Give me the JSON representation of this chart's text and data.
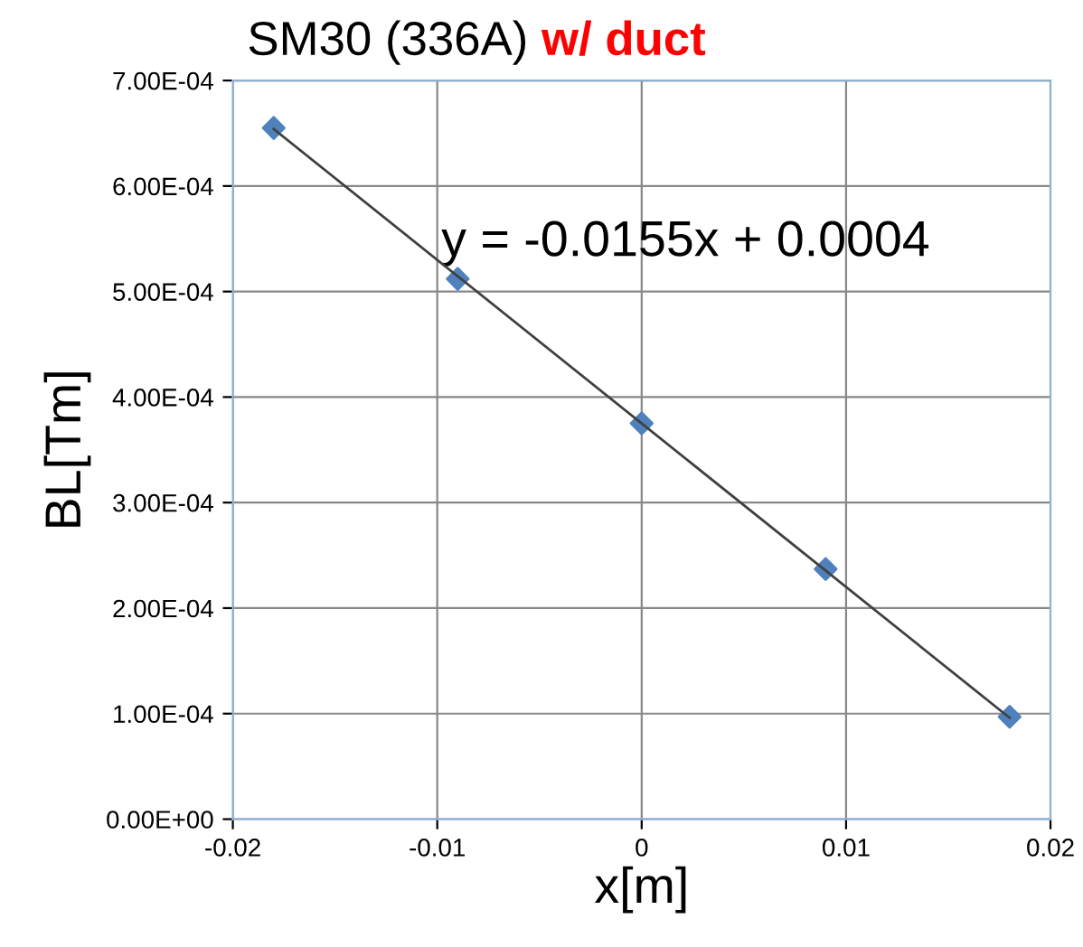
{
  "chart_data": {
    "type": "scatter",
    "title": "SM30 (336A)",
    "subtitle": "w/ duct",
    "xlabel": "x[m]",
    "ylabel": "BL[Tm]",
    "x": [
      -0.018,
      -0.009,
      0,
      0.009,
      0.018
    ],
    "series": [
      {
        "color": "#4f81bd",
        "values": [
          0.000655,
          0.000512,
          0.000375,
          0.000237,
          9.7e-05
        ],
        "marker": "diamond"
      },
      {
        "type": "line",
        "color": "#404040",
        "x": [
          -0.018,
          0.018
        ],
        "values": [
          0.000654,
          9.6e-05
        ],
        "marker": "none"
      }
    ],
    "xlim": [
      -0.02,
      0.02
    ],
    "xticks": [
      -0.02,
      -0.01,
      0,
      0.01,
      0.02
    ],
    "ylim": [
      0,
      0.0007
    ],
    "yticks": [
      {
        "value": 0,
        "label": "0.00E+00"
      },
      {
        "value": 0.0001,
        "label": "1.00E-04"
      },
      {
        "value": 0.0002,
        "label": "2.00E-04"
      },
      {
        "value": 0.0003,
        "label": "3.00E-04"
      },
      {
        "value": 0.0004,
        "label": "4.00E-04"
      },
      {
        "value": 0.0005,
        "label": "5.00E-04"
      },
      {
        "value": 0.0006,
        "label": "6.00E-04"
      },
      {
        "value": 0.0007,
        "label": "7.00E-04"
      }
    ],
    "grid": true,
    "legend": false,
    "annotations": [
      "y = -0.0155x + 0.0004"
    ]
  }
}
